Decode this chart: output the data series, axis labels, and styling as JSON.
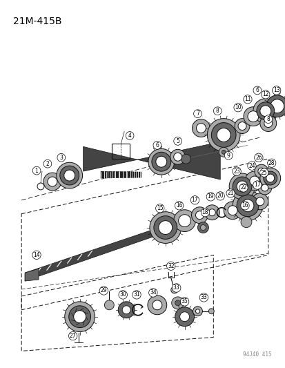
{
  "title": "21M-415B",
  "watermark": "94J40 415",
  "bg_color": "#ffffff",
  "title_fontsize": 10,
  "title_weight": "normal",
  "title_family": "sans-serif"
}
